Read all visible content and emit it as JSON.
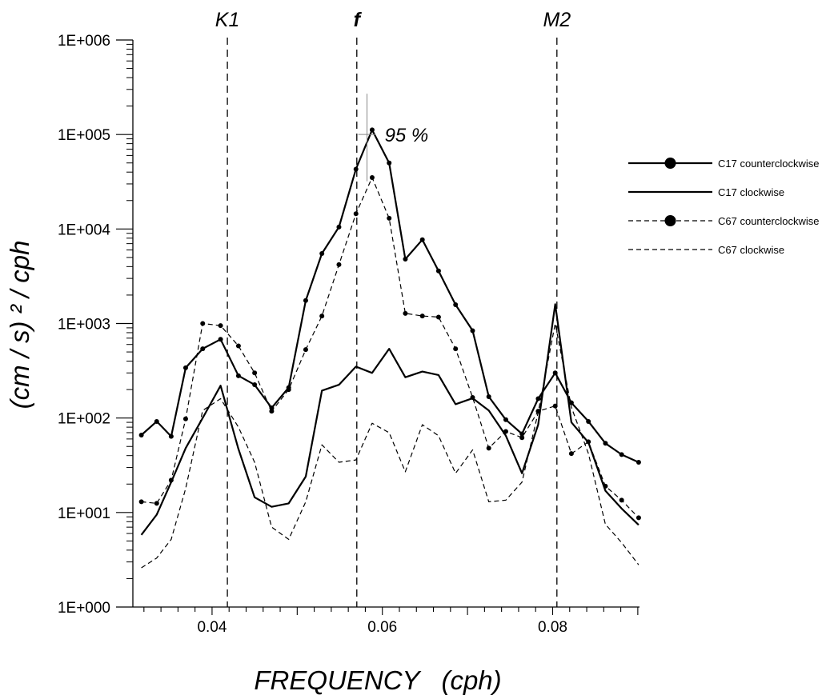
{
  "chart_data": {
    "type": "line",
    "title": "",
    "xlabel": "FREQUENCY   (cph)",
    "ylabel": "(cm / s) ² / cph",
    "xlim": [
      0.0307,
      0.0902
    ],
    "ylim": [
      1,
      1000000
    ],
    "yscale": "log",
    "xticks": [
      0.04,
      0.06,
      0.08
    ],
    "xtick_labels": [
      "0.04",
      "0.06",
      "0.08"
    ],
    "yticks": [
      1,
      10,
      100,
      1000,
      10000,
      100000,
      1000000
    ],
    "ytick_labels": [
      "1E+000",
      "1E+001",
      "1E+002",
      "1E+003",
      "1E+004",
      "1E+005",
      "1E+006"
    ],
    "grid": false,
    "legend_position": "right",
    "reference_lines": [
      {
        "label": "K1",
        "x": 0.0418,
        "bold": false
      },
      {
        "label": "f",
        "x": 0.057,
        "bold": true
      },
      {
        "label": "M2",
        "x": 0.0805,
        "bold": false
      }
    ],
    "confidence_interval": {
      "label": "95 %",
      "x": 0.0582,
      "y_center": 100000,
      "y_low": 32000,
      "y_high": 270000
    },
    "series": [
      {
        "name": "C17 counterclockwise",
        "line": "solid",
        "markers": true,
        "color": "#000000",
        "x": [
          0.0317,
          0.0335,
          0.0352,
          0.0369,
          0.0389,
          0.041,
          0.0431,
          0.045,
          0.047,
          0.049,
          0.051,
          0.0529,
          0.0549,
          0.0569,
          0.0588,
          0.0608,
          0.0627,
          0.0647,
          0.0666,
          0.0686,
          0.0706,
          0.0725,
          0.0745,
          0.0764,
          0.0783,
          0.0803,
          0.0822,
          0.0842,
          0.0862,
          0.0881,
          0.0901
        ],
        "values": [
          66,
          92,
          64,
          340,
          540,
          680,
          280,
          225,
          128,
          210,
          1750,
          5500,
          10500,
          43000,
          112000,
          50000,
          4800,
          7700,
          3600,
          1580,
          840,
          168,
          96,
          68,
          160,
          300,
          145,
          92,
          54,
          41,
          34
        ]
      },
      {
        "name": "C17 clockwise",
        "line": "solid",
        "markers": false,
        "color": "#000000",
        "x": [
          0.0317,
          0.0335,
          0.0352,
          0.0369,
          0.0389,
          0.041,
          0.0431,
          0.045,
          0.047,
          0.049,
          0.051,
          0.0529,
          0.0549,
          0.0569,
          0.0588,
          0.0608,
          0.0627,
          0.0647,
          0.0666,
          0.0686,
          0.0706,
          0.0725,
          0.0745,
          0.0764,
          0.0783,
          0.0803,
          0.0822,
          0.0842,
          0.0862,
          0.0881,
          0.0901
        ],
        "values": [
          5.8,
          9.5,
          21,
          48,
          100,
          220,
          47,
          14.5,
          11.5,
          12.5,
          24,
          195,
          225,
          350,
          300,
          540,
          270,
          310,
          285,
          140,
          162,
          120,
          65,
          26,
          85,
          1600,
          90,
          55,
          17,
          11,
          7.4
        ]
      },
      {
        "name": "C67 counterclockwise",
        "line": "dashed",
        "markers": true,
        "color": "#000000",
        "x": [
          0.0317,
          0.0335,
          0.0352,
          0.0369,
          0.0389,
          0.041,
          0.0431,
          0.045,
          0.047,
          0.049,
          0.051,
          0.0529,
          0.0549,
          0.0569,
          0.0588,
          0.0608,
          0.0627,
          0.0647,
          0.0666,
          0.0686,
          0.0706,
          0.0725,
          0.0745,
          0.0764,
          0.0783,
          0.0803,
          0.0822,
          0.0842,
          0.0862,
          0.0881,
          0.0901
        ],
        "values": [
          13,
          12.5,
          22,
          98,
          1000,
          950,
          580,
          300,
          118,
          200,
          530,
          1200,
          4200,
          14500,
          35000,
          13000,
          1280,
          1200,
          1170,
          540,
          165,
          48,
          72,
          62,
          118,
          134,
          42,
          56,
          19,
          13.5,
          8.8
        ]
      },
      {
        "name": "C67 clockwise",
        "line": "dashed",
        "markers": false,
        "color": "#000000",
        "x": [
          0.0317,
          0.0335,
          0.0352,
          0.0369,
          0.0389,
          0.041,
          0.0431,
          0.045,
          0.047,
          0.049,
          0.051,
          0.0529,
          0.0549,
          0.0569,
          0.0588,
          0.0608,
          0.0627,
          0.0647,
          0.0666,
          0.0686,
          0.0706,
          0.0725,
          0.0745,
          0.0764,
          0.0783,
          0.0803,
          0.0822,
          0.0842,
          0.0862,
          0.0881,
          0.0901
        ],
        "values": [
          2.6,
          3.3,
          5.2,
          18,
          120,
          160,
          80,
          34,
          7,
          5.2,
          13,
          52,
          34,
          36,
          88,
          70,
          27,
          85,
          65,
          26,
          46,
          13,
          13.5,
          21,
          115,
          1000,
          130,
          42,
          7.5,
          4.8,
          2.8
        ]
      }
    ]
  }
}
